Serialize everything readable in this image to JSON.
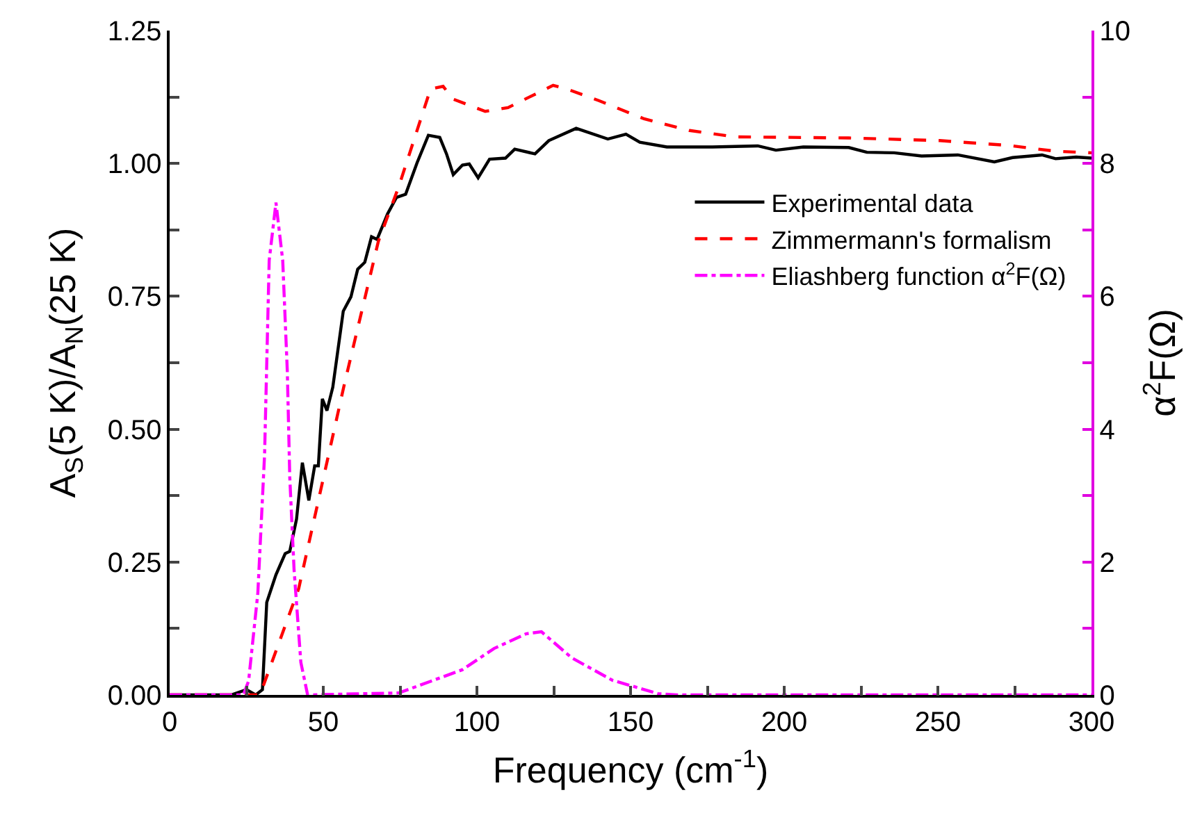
{
  "chart_data": {
    "type": "line",
    "xlabel": "Frequency (cm$^{-1}$)",
    "ylabel": "A$_{S}$(5 K)/A$_{N}$(25 K)",
    "y2label": "α$^{2}$F(Ω)",
    "xlim": [
      0,
      300
    ],
    "xticks": [
      0,
      {
        "value": 25,
        "label": null
      },
      50,
      {
        "value": 75,
        "label": null
      },
      100,
      {
        "value": 125,
        "label": null
      },
      150,
      {
        "value": 175,
        "label": null
      },
      200,
      {
        "value": 225,
        "label": null
      },
      250,
      {
        "value": 275,
        "label": null
      },
      300
    ],
    "ylim": [
      0,
      1.25
    ],
    "yticks": [
      {
        "value": 0,
        "label": "0.00"
      },
      {
        "value": 0.125,
        "label": null
      },
      {
        "value": 0.25,
        "label": "0.25"
      },
      {
        "value": 0.375,
        "label": null
      },
      {
        "value": 0.5,
        "label": "0.50"
      },
      {
        "value": 0.625,
        "label": null
      },
      {
        "value": 0.75,
        "label": "0.75"
      },
      {
        "value": 0.875,
        "label": null
      },
      {
        "value": 1.0,
        "label": "1.00"
      },
      {
        "value": 1.125,
        "label": null
      },
      {
        "value": 1.25,
        "label": "1.25"
      }
    ],
    "y2lim": [
      0,
      10
    ],
    "y2ticks": [
      0,
      {
        "value": 1,
        "label": null
      },
      2,
      {
        "value": 3,
        "label": null
      },
      4,
      {
        "value": 5,
        "label": null
      },
      6,
      {
        "value": 7,
        "label": null
      },
      8,
      {
        "value": 9,
        "label": null
      },
      10
    ],
    "legend": "right",
    "marker": "none",
    "series": [
      {
        "name": "Experimental data",
        "color": "#000000",
        "line_style": "solid",
        "x": [
          0,
          20,
          25,
          28,
          30.2,
          31.6,
          34.6,
          37.6,
          39.1,
          41.3,
          43.2,
          45.3,
          47.2,
          48.4,
          49.7,
          51.2,
          53.1,
          56.5,
          59.0,
          61.2,
          63.5,
          65.7,
          67.5,
          70.9,
          73.8,
          76.8,
          80.5,
          84.2,
          87.9,
          90.1,
          92.3,
          95.3,
          97.5,
          100.4,
          104.1,
          109.3,
          112.3,
          118.9,
          123.4,
          132.3,
          142.6,
          148.5,
          153.0,
          161.8,
          176.6,
          191.4,
          197.3,
          206.2,
          221.0,
          226.9,
          235.8,
          244.7,
          256.5,
          268.4,
          274.3,
          283.9,
          288.3,
          295,
          300
        ],
        "values": [
          0,
          0,
          0.01,
          0,
          0.01,
          0.174,
          0.226,
          0.266,
          0.27,
          0.331,
          0.437,
          0.366,
          0.431,
          0.431,
          0.557,
          0.535,
          0.579,
          0.722,
          0.749,
          0.801,
          0.814,
          0.862,
          0.857,
          0.905,
          0.936,
          0.942,
          1.001,
          1.053,
          1.049,
          1.018,
          0.979,
          0.997,
          0.999,
          0.973,
          1.008,
          1.01,
          1.027,
          1.018,
          1.043,
          1.066,
          1.046,
          1.055,
          1.04,
          1.031,
          1.031,
          1.033,
          1.025,
          1.031,
          1.03,
          1.021,
          1.02,
          1.014,
          1.016,
          1.003,
          1.011,
          1.016,
          1.009,
          1.012,
          1.01
        ]
      },
      {
        "name": "Zimmermann's formalism",
        "color": "#ff0000",
        "line_style": "dashed",
        "x": [
          0,
          29.4,
          42.0,
          56.8,
          67.9,
          74.6,
          84.9,
          89,
          92.3,
          102.7,
          110.1,
          124.8,
          129.3,
          139.8,
          154.4,
          169.2,
          184.0,
          221,
          250.6,
          272.8,
          288.3,
          300
        ],
        "values": [
          0,
          0,
          0.2,
          0.583,
          0.853,
          0.957,
          1.14,
          1.145,
          1.121,
          1.098,
          1.105,
          1.147,
          1.14,
          1.118,
          1.084,
          1.062,
          1.05,
          1.048,
          1.043,
          1.034,
          1.023,
          1.02
        ]
      },
      {
        "name": "Eliashberg function α$^{2}$F(Ω)",
        "color": "#ff00ff",
        "line_style": "dashdot",
        "axis": "y2",
        "x": [
          0,
          24,
          25.7,
          28.7,
          30.9,
          32.4,
          34.6,
          36.8,
          38.3,
          39.1,
          40.5,
          42.7,
          44.9,
          74.6,
          95.3,
          105.6,
          116.0,
          121,
          130.8,
          144.1,
          158.9,
          165,
          300
        ],
        "values": [
          0,
          0,
          0.21,
          1.53,
          3.62,
          6.54,
          7.41,
          6.54,
          4.87,
          3.27,
          1.88,
          0.49,
          0,
          0.03,
          0.38,
          0.7,
          0.92,
          0.95,
          0.56,
          0.22,
          0.02,
          0,
          0
        ]
      }
    ]
  }
}
